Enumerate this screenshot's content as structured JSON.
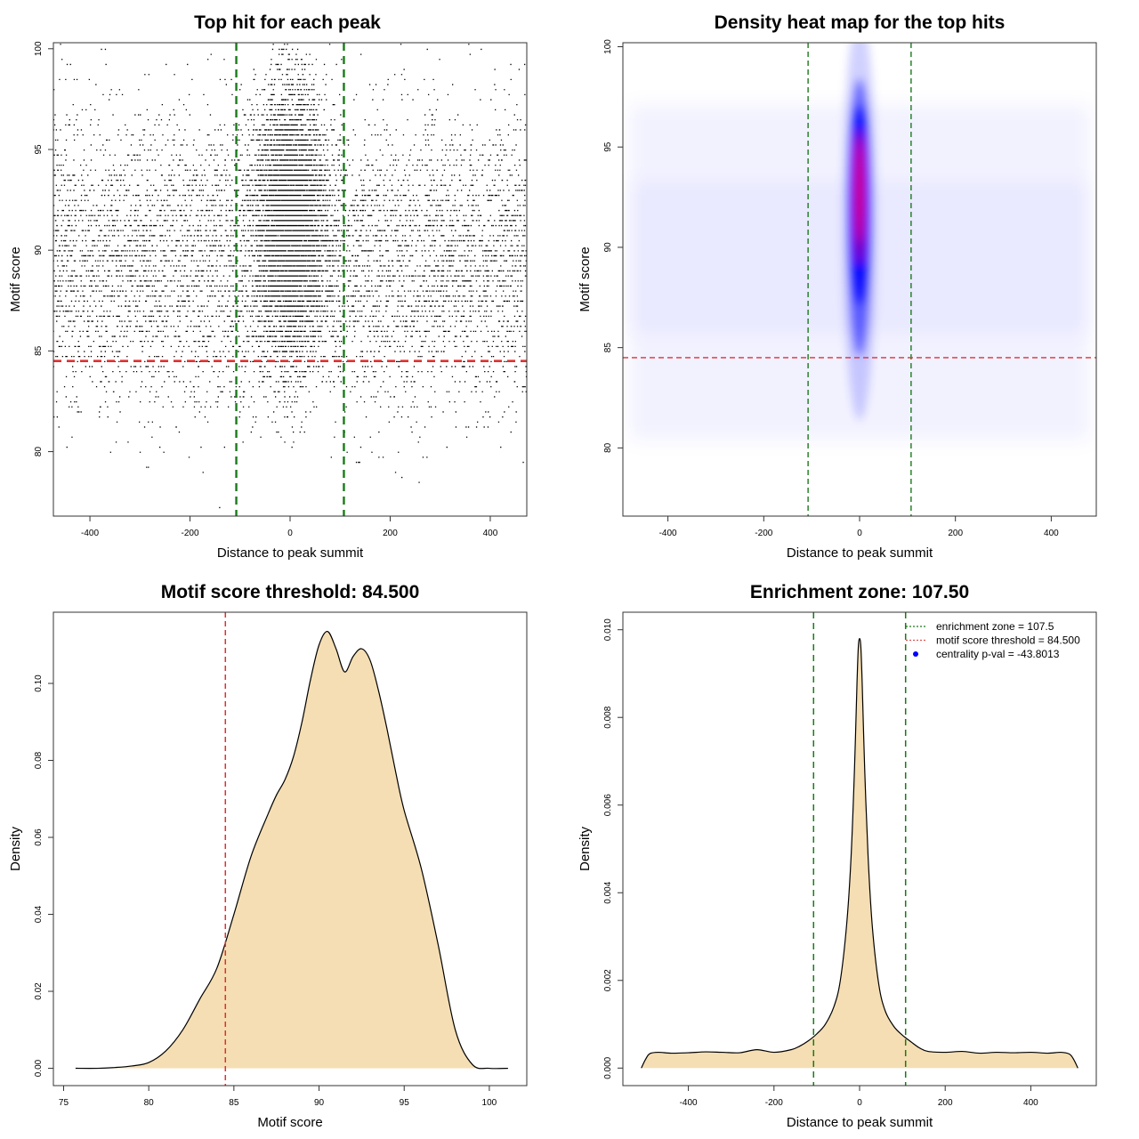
{
  "chart_data": [
    {
      "type": "scatter",
      "title": "Top hit for each peak",
      "xlabel": "Distance to peak summit",
      "ylabel": "Motif score",
      "xlim": [
        -500,
        500
      ],
      "ylim": [
        76,
        101
      ],
      "xticks": [
        "-400",
        "-200",
        "0",
        "200",
        "400"
      ],
      "yticks": [
        "80",
        "85",
        "90",
        "95",
        "100"
      ],
      "grid": false,
      "reference_lines": {
        "vertical": [
          -107.5,
          107.5
        ],
        "horizontal": [
          84.5
        ]
      },
      "distribution": {
        "background": {
          "x_range": [
            -490,
            490
          ],
          "y_mean": 89.5,
          "y_sd": 3.6,
          "approx_count": 6500
        },
        "central_peak": {
          "x_mean": 0,
          "x_sd": 35,
          "y_mean": 91.5,
          "y_sd": 3.3,
          "approx_count": 7500
        }
      }
    },
    {
      "type": "heatmap",
      "title": "Density heat map for the top hits",
      "xlabel": "Distance to peak summit",
      "ylabel": "Motif score",
      "xlim": [
        -500,
        500
      ],
      "ylim": [
        76,
        101
      ],
      "xticks": [
        "-400",
        "-200",
        "0",
        "200",
        "400"
      ],
      "yticks": [
        "80",
        "85",
        "90",
        "95",
        "100"
      ],
      "grid": false,
      "colors": [
        "#ffffff",
        "#0000ff",
        "#ff0000"
      ],
      "reference_lines": {
        "vertical": [
          -107.5,
          107.5
        ],
        "horizontal": [
          84.5
        ]
      },
      "density": {
        "peak": {
          "x": 0,
          "y": 92.5,
          "x_sd": 14,
          "y_sd": 2.6
        },
        "halo": {
          "x": 0,
          "y": 91.5,
          "x_sd": 22,
          "y_sd": 4.6
        },
        "background_y_mean": 89.5,
        "background_y_sd": 3.8
      }
    },
    {
      "type": "area",
      "title": "Motif score threshold: 84.500",
      "xlabel": "Motif score",
      "ylabel": "Density",
      "xlim": [
        75,
        101
      ],
      "ylim": [
        0,
        0.115
      ],
      "xticks": [
        "75",
        "80",
        "85",
        "90",
        "95",
        "100"
      ],
      "yticks": [
        "0.00",
        "0.02",
        "0.04",
        "0.06",
        "0.08",
        "0.10"
      ],
      "fill": "#f5deb3",
      "grid": false,
      "reference_lines": {
        "vertical": [
          84.5
        ]
      },
      "x": [
        75.7,
        77,
        78,
        79,
        80,
        81,
        82,
        83,
        84,
        85,
        86,
        87,
        87.5,
        88,
        88.5,
        89,
        89.5,
        90,
        90.5,
        91,
        91.5,
        92,
        92.5,
        93,
        93.5,
        94,
        94.5,
        95,
        96,
        97,
        98,
        99,
        100,
        101.1
      ],
      "y": [
        0.0,
        0.0,
        0.0002,
        0.0006,
        0.0015,
        0.0045,
        0.01,
        0.018,
        0.026,
        0.04,
        0.055,
        0.066,
        0.071,
        0.075,
        0.081,
        0.09,
        0.101,
        0.11,
        0.1135,
        0.109,
        0.103,
        0.107,
        0.109,
        0.106,
        0.098,
        0.088,
        0.077,
        0.067,
        0.052,
        0.032,
        0.01,
        0.001,
        0.0,
        0.0
      ]
    },
    {
      "type": "area",
      "title": "Enrichment zone: 107.50",
      "xlabel": "Distance to peak summit",
      "ylabel": "Density",
      "xlim": [
        -520,
        520
      ],
      "ylim": [
        0,
        0.0101
      ],
      "xticks": [
        "-400",
        "-200",
        "0",
        "200",
        "400"
      ],
      "yticks": [
        "0.000",
        "0.002",
        "0.004",
        "0.006",
        "0.008",
        "0.010"
      ],
      "fill": "#f5deb3",
      "grid": false,
      "reference_lines": {
        "vertical": [
          -107.5,
          107.5
        ]
      },
      "legend_position": "top-right",
      "legend": [
        {
          "label": "enrichment zone = 107.5",
          "color": "#1a7a1a",
          "style": "dotted-line"
        },
        {
          "label": "motif score threshold = 84.500",
          "color": "#e05050",
          "style": "dotted-line"
        },
        {
          "label": "centrality p-val = -43.8013",
          "color": "#0000ff",
          "style": "point"
        }
      ],
      "x": [
        -510,
        -500,
        -490,
        -470,
        -440,
        -400,
        -360,
        -320,
        -280,
        -240,
        -200,
        -160,
        -140,
        -120,
        -100,
        -80,
        -60,
        -45,
        -30,
        -20,
        -12,
        -6,
        -3,
        0,
        3,
        6,
        12,
        20,
        30,
        45,
        60,
        80,
        100,
        120,
        140,
        160,
        200,
        240,
        280,
        320,
        360,
        400,
        440,
        470,
        490,
        500,
        510
      ],
      "y": [
        0.0,
        0.0002,
        0.00033,
        0.00036,
        0.00034,
        0.00035,
        0.00037,
        0.00036,
        0.00035,
        0.00042,
        0.00036,
        0.00042,
        0.0005,
        0.00062,
        0.00078,
        0.001,
        0.0014,
        0.002,
        0.0033,
        0.0048,
        0.0068,
        0.0088,
        0.0096,
        0.0098,
        0.0096,
        0.0088,
        0.0068,
        0.0048,
        0.0032,
        0.0019,
        0.0013,
        0.00095,
        0.00075,
        0.0006,
        0.00046,
        0.00038,
        0.00036,
        0.00038,
        0.00034,
        0.00036,
        0.00035,
        0.00036,
        0.00034,
        0.00036,
        0.00032,
        0.0002,
        0.0
      ]
    }
  ]
}
